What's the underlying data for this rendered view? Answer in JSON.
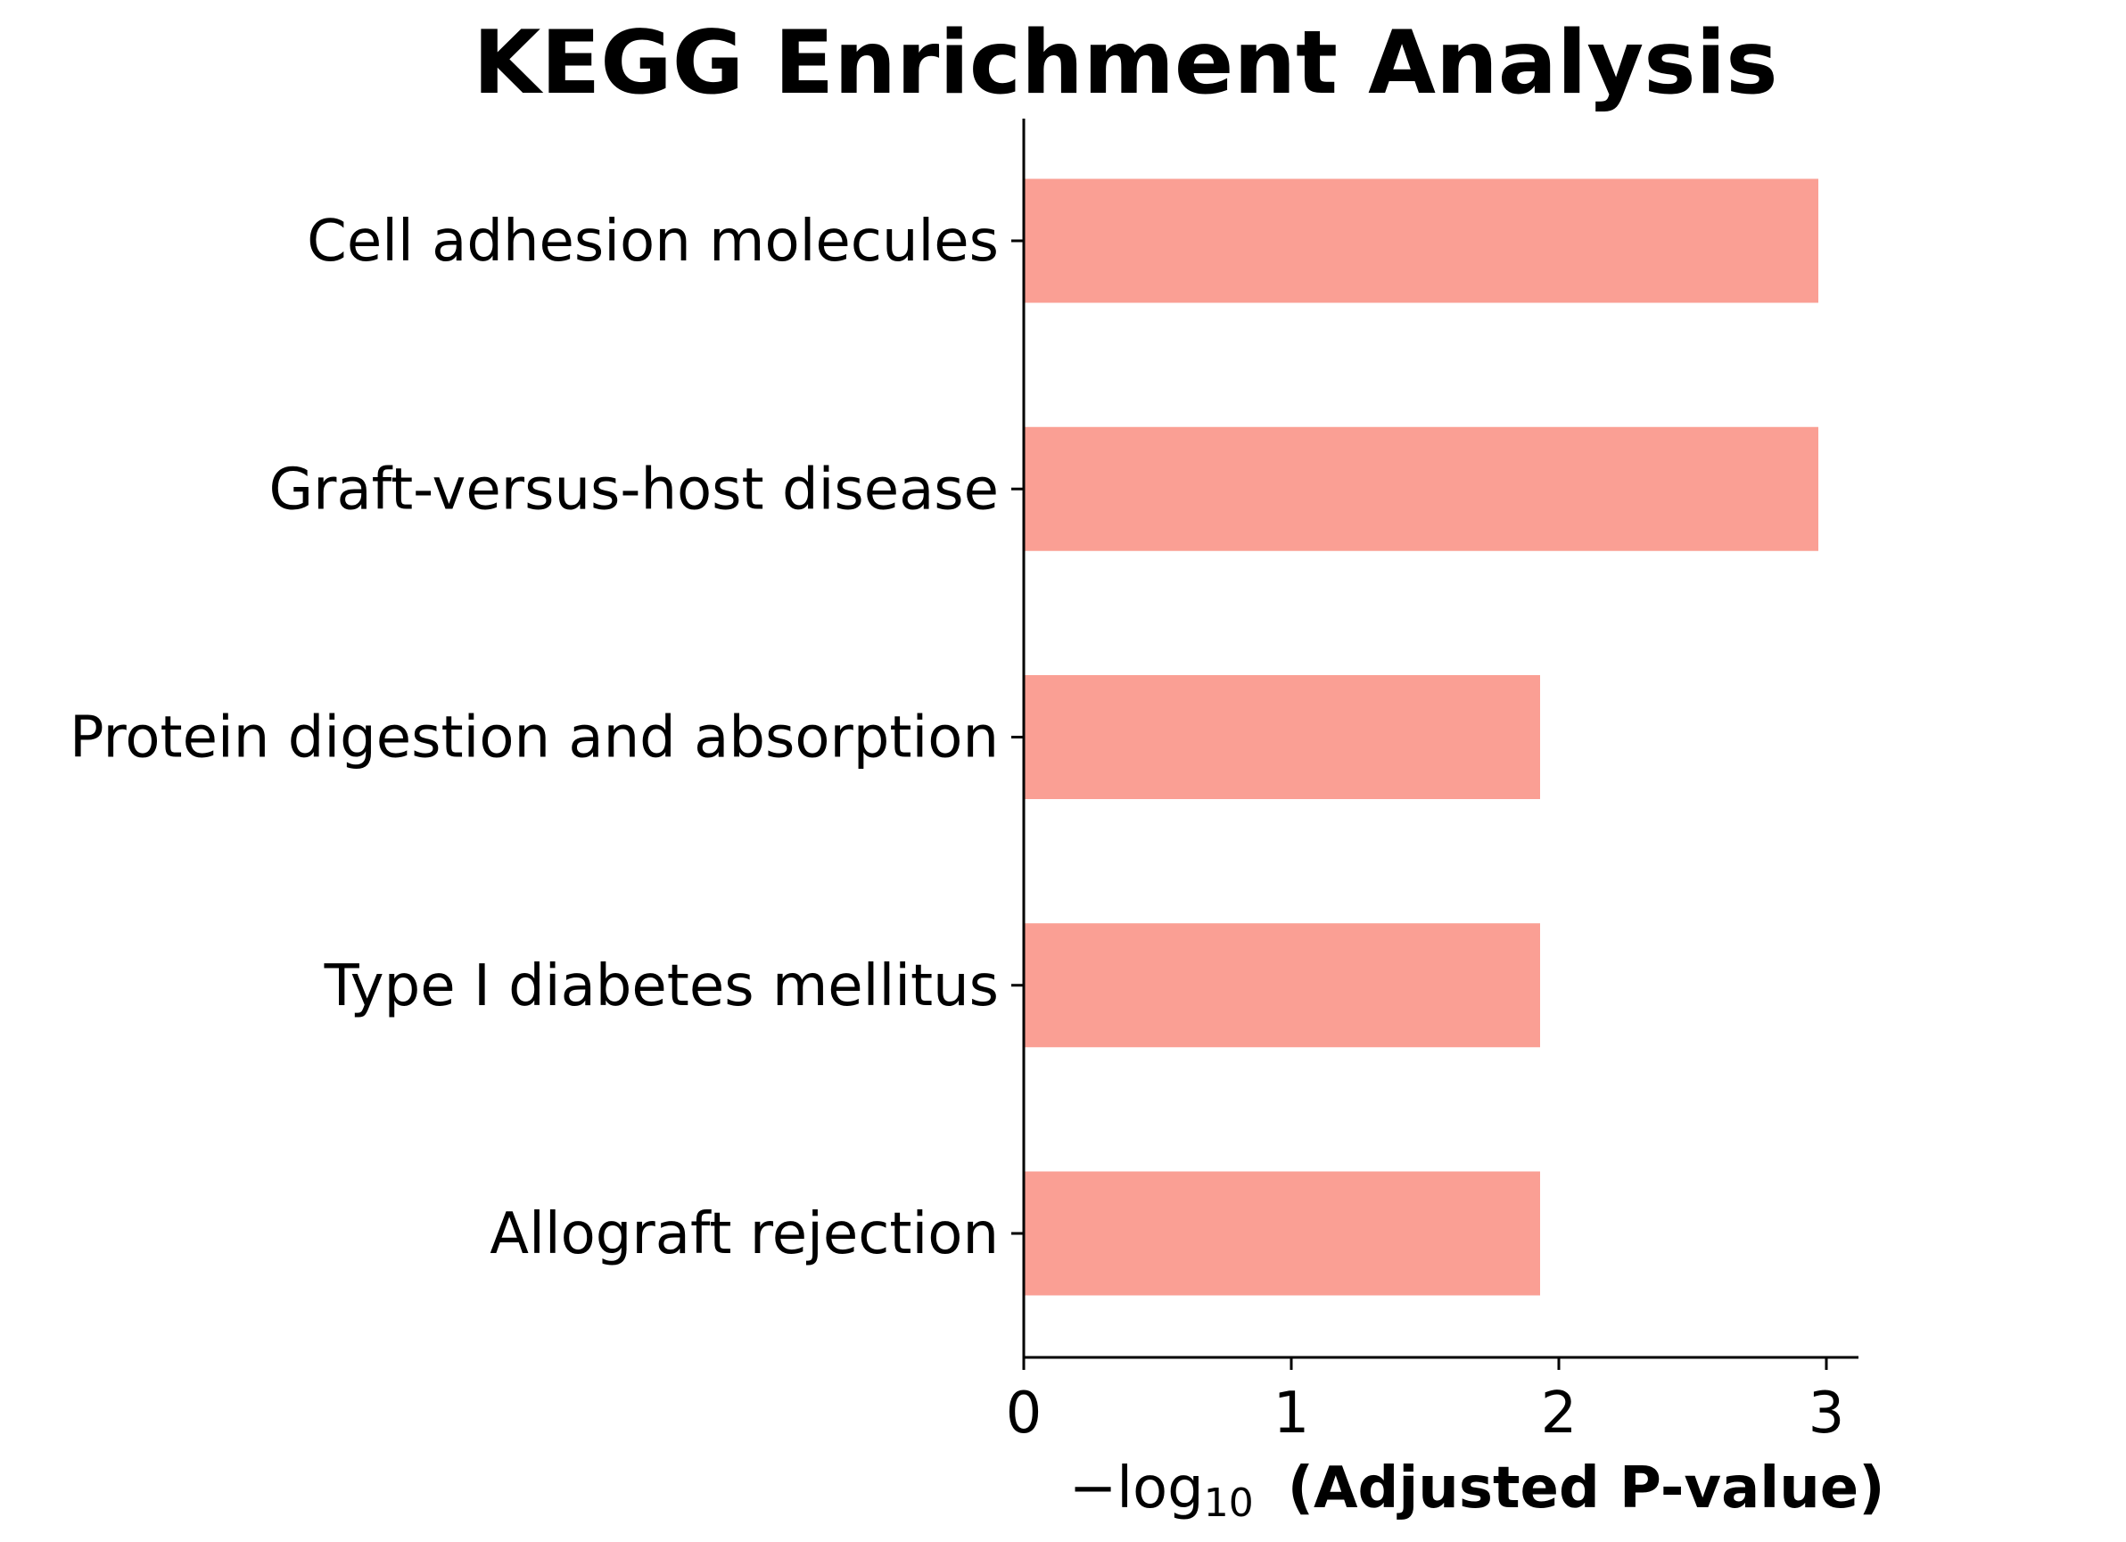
{
  "chart_data": {
    "type": "bar",
    "orientation": "horizontal",
    "title": "KEGG Enrichment Analysis",
    "categories": [
      "Cell adhesion molecules",
      "Graft-versus-host disease",
      "Protein digestion and absorption",
      "Type I diabetes mellitus",
      "Allograft rejection"
    ],
    "values": [
      2.97,
      2.97,
      1.93,
      1.93,
      1.93
    ],
    "xlabel": {
      "prefix": "−log",
      "subscript": "10",
      "bold": "(Adjusted P-value)"
    },
    "ylabel": "",
    "xlim": [
      0,
      3.12
    ],
    "xticks": [
      0,
      1,
      2,
      3
    ],
    "xtick_labels": [
      "0",
      "1",
      "2",
      "3"
    ],
    "bar_color": "#fa9f94",
    "grid": false
  }
}
